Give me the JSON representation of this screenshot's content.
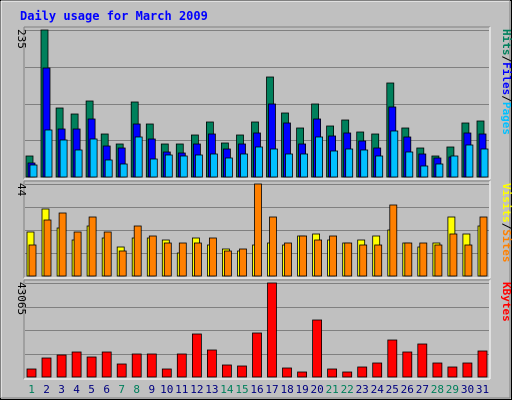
{
  "chart_data": {
    "type": "bar",
    "title": "Daily usage for March 2009",
    "categories": [
      "1",
      "2",
      "3",
      "4",
      "5",
      "6",
      "7",
      "8",
      "9",
      "10",
      "11",
      "12",
      "13",
      "14",
      "15",
      "16",
      "17",
      "18",
      "19",
      "20",
      "21",
      "22",
      "23",
      "24",
      "25",
      "26",
      "27",
      "28",
      "29",
      "30",
      "31"
    ],
    "weekend_days": [
      "1",
      "7",
      "8",
      "14",
      "15",
      "21",
      "22",
      "28",
      "29"
    ],
    "panels": [
      {
        "id": "top",
        "ymax": 235,
        "ymax_label": "235",
        "side_label": {
          "parts": [
            "Pages",
            "/",
            "Files",
            "/",
            "Hits"
          ]
        },
        "series": [
          {
            "name": "Hits",
            "color": "#00805c",
            "values": [
              34,
              235,
              110,
              100,
              122,
              68,
              52,
              120,
              85,
              52,
              52,
              67,
              88,
              55,
              67,
              88,
              160,
              102,
              78,
              116,
              81,
              91,
              72,
              69,
              150,
              78,
              47,
              34,
              48,
              86,
              90
            ]
          },
          {
            "name": "Files",
            "color": "#0000ff",
            "values": [
              22,
              175,
              76,
              76,
              92,
              49,
              46,
              85,
              61,
              40,
              39,
              52,
              68,
              44,
              53,
              71,
              116,
              86,
              52,
              92,
              65,
              71,
              57,
              47,
              112,
              64,
              36,
              31,
              32,
              70,
              69
            ]
          },
          {
            "name": "Pages",
            "color": "#00c0ff",
            "values": [
              19,
              75,
              59,
              43,
              60,
              27,
              21,
              64,
              29,
              35,
              34,
              35,
              36,
              30,
              37,
              48,
              45,
              37,
              37,
              64,
              41,
              44,
              43,
              33,
              73,
              40,
              18,
              20,
              33,
              51,
              45
            ]
          }
        ]
      },
      {
        "id": "mid",
        "ymax": 44,
        "ymax_label": "44",
        "side_label": {
          "parts": [
            "Sites",
            "/",
            "Visits"
          ]
        },
        "series": [
          {
            "name": "Visits",
            "color": "#ffff00",
            "values": [
              21,
              32,
              23,
              17,
              24,
              18,
              14,
              18,
              18,
              17,
              11,
              18,
              15,
              13,
              12,
              15,
              16,
              15,
              19,
              20,
              17,
              16,
              17,
              19,
              22,
              16,
              14,
              16,
              28,
              20,
              24
            ]
          },
          {
            "name": "Sites",
            "color": "#ff8000",
            "values": [
              15,
              27,
              30,
              21,
              28,
              21,
              12,
              24,
              19,
              16,
              16,
              16,
              18,
              12,
              13,
              44,
              28,
              16,
              19,
              17,
              19,
              16,
              15,
              15,
              34,
              16,
              16,
              15,
              20,
              15,
              28
            ]
          }
        ]
      },
      {
        "id": "bot",
        "ymax": 43065,
        "ymax_label": "43065",
        "side_label": {
          "parts": [
            "KBytes"
          ]
        },
        "series": [
          {
            "name": "KBytes",
            "color": "#ff0000",
            "values": [
              3500,
              8500,
              10000,
              11500,
              9000,
              11500,
              6000,
              10500,
              10500,
              3500,
              10500,
              19500,
              12500,
              5500,
              5000,
              20000,
              43065,
              4000,
              2500,
              26000,
              3500,
              2500,
              4500,
              6500,
              17000,
              11500,
              15000,
              6500,
              4500,
              6500,
              12000
            ]
          }
        ]
      }
    ],
    "colors": {
      "title": "#0000ff",
      "plot_bg": "#c0c0c0",
      "grid": "#808080",
      "day_label": "#000080",
      "weekend_label": "#00805c",
      "slash": "#000000"
    }
  }
}
